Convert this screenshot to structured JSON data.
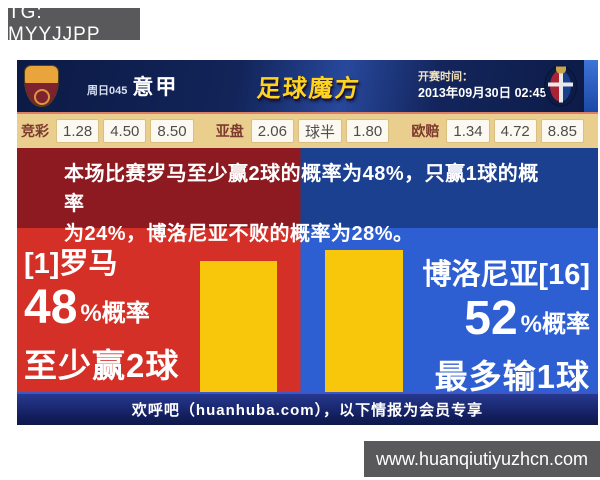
{
  "watermarks": {
    "tg": "TG: MYYJJPP",
    "site": "www.huanqiutiyuzhcn.com"
  },
  "header": {
    "match_no": "周日045",
    "league": "意甲",
    "brand": "足球魔方",
    "kickoff_label": "开赛时间：",
    "kickoff_time": "2013年09月30日 02:45",
    "home_crest": "罗马",
    "away_crest": "博洛尼亚"
  },
  "odds": {
    "jingcai": {
      "label": "竞彩",
      "values": [
        "1.28",
        "4.50",
        "8.50"
      ]
    },
    "yapan": {
      "label": "亚盘",
      "values": [
        "2.06",
        "球半",
        "1.80"
      ]
    },
    "oupei": {
      "label": "欧赔",
      "values": [
        "1.34",
        "4.72",
        "8.85"
      ]
    }
  },
  "banner": {
    "lines": [
      "本场比赛罗马至少赢2球的概率为48%，只赢1球的概率",
      "为24%，博洛尼亚不败的概率为28%。"
    ]
  },
  "home": {
    "name": "[1]罗马",
    "probability": "48",
    "suffix": "%概率",
    "outcome": "至少赢2球"
  },
  "away": {
    "name": "博洛尼亚[16]",
    "probability": "52",
    "suffix": "%概率",
    "outcome": "最多输1球"
  },
  "footer": {
    "text": "欢呼吧（huanhuba.com），以下情报为会员专享"
  },
  "colors": {
    "home_red": "#d43028",
    "away_blue": "#2d5ed2",
    "banner_red": "#8d1a20",
    "banner_blue": "#1c4090",
    "bar_yellow": "#f8c70b",
    "odds_bg": "#eace8e"
  },
  "chart_data": {
    "type": "bar",
    "categories": [
      "罗马",
      "博洛尼亚"
    ],
    "values": [
      48,
      52
    ],
    "unit": "%"
  }
}
